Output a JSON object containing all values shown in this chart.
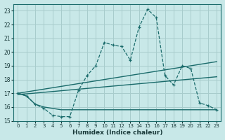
{
  "xlabel": "Humidex (Indice chaleur)",
  "bg_color": "#c8e8e8",
  "grid_color": "#a8cccc",
  "line_color": "#1a6b6b",
  "xlim": [
    -0.5,
    23.5
  ],
  "ylim": [
    15,
    23.5
  ],
  "xticks": [
    0,
    1,
    2,
    3,
    4,
    5,
    6,
    7,
    8,
    9,
    10,
    11,
    12,
    13,
    14,
    15,
    16,
    17,
    18,
    19,
    20,
    21,
    22,
    23
  ],
  "yticks": [
    15,
    16,
    17,
    18,
    19,
    20,
    21,
    22,
    23
  ],
  "dashed_x": [
    0,
    1,
    2,
    3,
    4,
    5,
    6,
    7,
    8,
    9,
    10,
    11,
    12,
    13,
    14,
    15,
    16,
    17,
    18,
    19,
    20,
    21,
    22,
    23
  ],
  "dashed_y": [
    17.0,
    16.8,
    16.2,
    15.9,
    15.4,
    15.3,
    15.3,
    17.2,
    18.3,
    19.0,
    20.7,
    20.5,
    20.4,
    19.4,
    21.8,
    23.1,
    22.5,
    18.3,
    17.6,
    19.0,
    18.8,
    16.3,
    16.1,
    15.8
  ],
  "flat_x": [
    0,
    1,
    2,
    3,
    4,
    5,
    6,
    7,
    8,
    9,
    10,
    11,
    12,
    13,
    14,
    15,
    16,
    17,
    18,
    19,
    20,
    21,
    22,
    23
  ],
  "flat_y": [
    17.0,
    16.8,
    16.2,
    16.0,
    15.9,
    15.8,
    15.8,
    15.8,
    15.8,
    15.8,
    15.8,
    15.8,
    15.8,
    15.8,
    15.8,
    15.8,
    15.8,
    15.8,
    15.8,
    15.8,
    15.8,
    15.8,
    15.8,
    15.8
  ],
  "trend1_x": [
    0,
    23
  ],
  "trend1_y": [
    16.9,
    18.2
  ],
  "trend2_x": [
    0,
    23
  ],
  "trend2_y": [
    17.0,
    19.3
  ]
}
